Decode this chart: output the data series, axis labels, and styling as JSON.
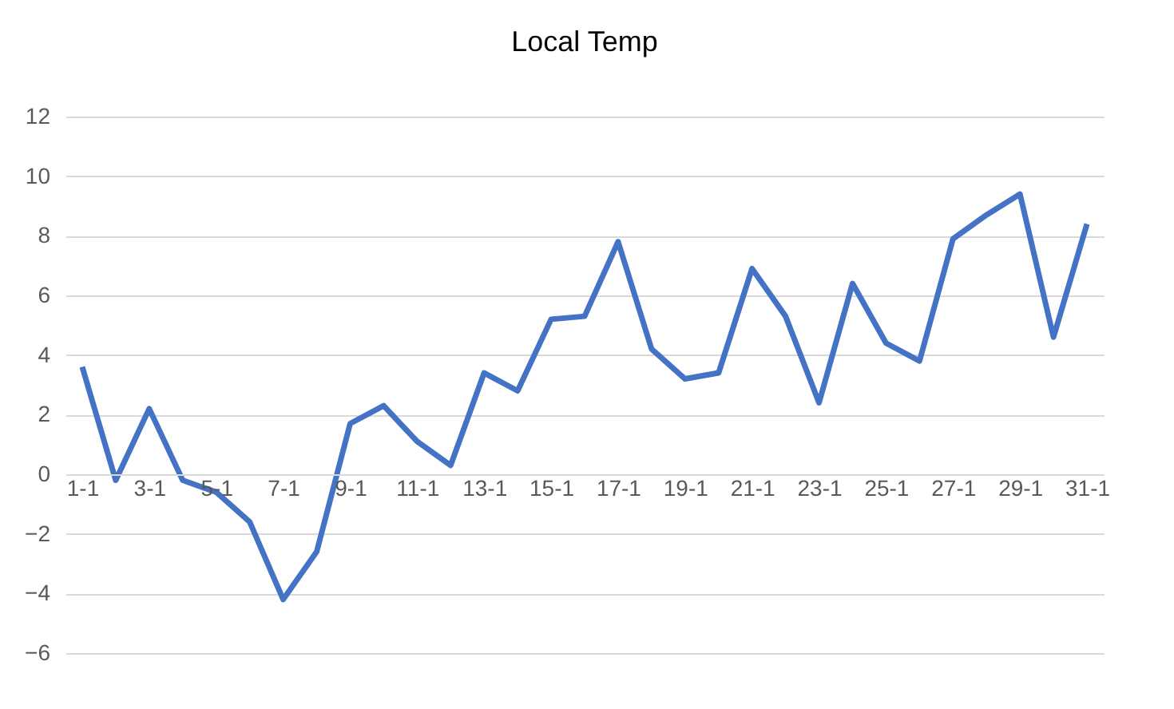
{
  "chart_data": {
    "type": "line",
    "title": "Local Temp",
    "categories": [
      "1-1",
      null,
      "3-1",
      null,
      "5-1",
      null,
      "7-1",
      null,
      "9-1",
      null,
      "11-1",
      null,
      "13-1",
      null,
      "15-1",
      null,
      "17-1",
      null,
      "19-1",
      null,
      "21-1",
      null,
      "23-1",
      null,
      "25-1",
      null,
      "27-1",
      null,
      "29-1",
      null,
      "31-1"
    ],
    "series": [
      {
        "color": "#4472c4",
        "values": [
          3.6,
          -0.2,
          2.2,
          -0.2,
          -0.6,
          -1.6,
          -4.2,
          -2.6,
          1.7,
          2.3,
          1.1,
          0.3,
          3.4,
          2.8,
          5.2,
          5.3,
          7.8,
          4.2,
          3.2,
          3.4,
          6.9,
          5.3,
          2.4,
          6.4,
          4.4,
          3.8,
          7.9,
          8.7,
          9.4,
          4.6,
          8.4
        ]
      }
    ],
    "ylim": [
      -6,
      12
    ],
    "yticks": [
      -6,
      -4,
      -2,
      0,
      2,
      4,
      6,
      8,
      10,
      12
    ],
    "grid": "y",
    "marker": "none",
    "line_style": "solid"
  }
}
